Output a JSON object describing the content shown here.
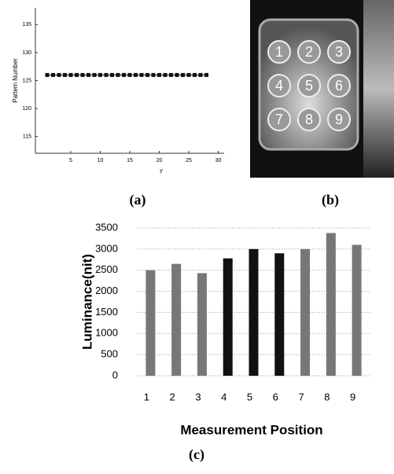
{
  "chart_data": [
    {
      "type": "line",
      "ylabel": "Pattern Number",
      "xlabel": "y",
      "x": [
        1,
        2,
        3,
        4,
        5,
        6,
        7,
        8,
        9,
        10,
        11,
        12,
        13,
        14,
        15,
        16,
        17,
        18,
        19,
        20,
        21,
        22,
        23,
        24,
        25,
        26,
        27,
        28
      ],
      "values": [
        126,
        126,
        126,
        126,
        126,
        126,
        126,
        126,
        126,
        126,
        126,
        126,
        126,
        126,
        126,
        126,
        126,
        126,
        126,
        126,
        126,
        126,
        126,
        126,
        126,
        126,
        126,
        126
      ],
      "color": "#111111",
      "xlim": [
        -1,
        31
      ],
      "xticks": [
        5,
        10,
        15,
        20,
        25,
        30
      ],
      "ylim": [
        112,
        138
      ],
      "yticks": [
        115,
        120,
        125,
        130,
        135
      ]
    },
    {
      "type": "bar",
      "ylabel": "Luminance(nit)",
      "xlabel": "Measurement Position",
      "categories": [
        "1",
        "2",
        "3",
        "4",
        "5",
        "6",
        "7",
        "8",
        "9"
      ],
      "values": [
        2500,
        2650,
        2430,
        2780,
        3000,
        2900,
        3000,
        3380,
        3100
      ],
      "colors": [
        "#777777",
        "#777777",
        "#777777",
        "#111111",
        "#111111",
        "#111111",
        "#777777",
        "#777777",
        "#777777"
      ],
      "ylim": [
        0,
        3500
      ],
      "yticks": [
        0,
        500,
        1000,
        1500,
        2000,
        2500,
        3000,
        3500
      ],
      "grid": true
    }
  ],
  "image": {
    "keys": [
      "1",
      "2",
      "3",
      "4",
      "5",
      "6",
      "7",
      "8",
      "9"
    ]
  },
  "panel_labels": [
    "(a)",
    "(b)",
    "(c)"
  ]
}
